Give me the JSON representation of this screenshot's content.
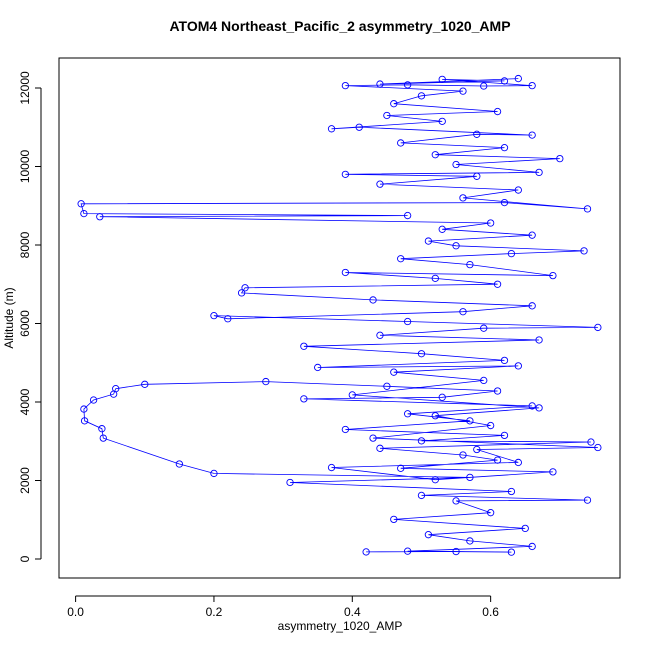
{
  "chart_data": {
    "type": "line",
    "title": "ATOM4 Northeast_Pacific_2 asymmetry_1020_AMP",
    "xlabel": "asymmetry_1020_AMP",
    "ylabel": "Altitude (m)",
    "xlim": [
      -0.024,
      0.787
    ],
    "ylim": [
      -484,
      12764
    ],
    "xticks": [
      {
        "value": 0,
        "label": "0.0"
      },
      0.2,
      0.4,
      0.6
    ],
    "yticks": [
      0,
      2000,
      4000,
      6000,
      8000,
      10000,
      12000
    ],
    "grid": false,
    "marker": "open-circle",
    "x": [
      0.42,
      0.55,
      0.63,
      0.48,
      0.66,
      0.57,
      0.51,
      0.65,
      0.46,
      0.6,
      0.55,
      0.74,
      0.5,
      0.63,
      0.31,
      0.57,
      0.2,
      0.15,
      0.04,
      0.038,
      0.013,
      0.012,
      0.026,
      0.055,
      0.058,
      0.1,
      0.275,
      0.45,
      0.61,
      0.53,
      0.33,
      0.66,
      0.48,
      0.57,
      0.39,
      0.62,
      0.5,
      0.745,
      0.44,
      0.56,
      0.61,
      0.47,
      0.69,
      0.52,
      0.37,
      0.64,
      0.58,
      0.755,
      0.43,
      0.6,
      0.52,
      0.67,
      0.4,
      0.59,
      0.46,
      0.64,
      0.35,
      0.62,
      0.5,
      0.33,
      0.67,
      0.44,
      0.59,
      0.755,
      0.48,
      0.2,
      0.22,
      0.56,
      0.66,
      0.43,
      0.24,
      0.245,
      0.61,
      0.52,
      0.39,
      0.69,
      0.57,
      0.47,
      0.63,
      0.735,
      0.55,
      0.51,
      0.66,
      0.53,
      0.6,
      0.035,
      0.48,
      0.012,
      0.008,
      0.62,
      0.74,
      0.56,
      0.64,
      0.44,
      0.58,
      0.39,
      0.67,
      0.55,
      0.7,
      0.52,
      0.62,
      0.47,
      0.58,
      0.66,
      0.41,
      0.37,
      0.53,
      0.45,
      0.61,
      0.46,
      0.5,
      0.56,
      0.39,
      0.48,
      0.59,
      0.66,
      0.53,
      0.62,
      0.44,
      0.64
    ],
    "series": [
      {
        "color": "#0000ff",
        "values": [
          180,
          190,
          175,
          200,
          320,
          460,
          620,
          780,
          1010,
          1180,
          1480,
          1500,
          1620,
          1720,
          1950,
          2080,
          2180,
          2420,
          3080,
          3320,
          3520,
          3820,
          4050,
          4200,
          4340,
          4450,
          4520,
          4400,
          4280,
          4120,
          4080,
          3900,
          3700,
          3520,
          3300,
          3150,
          3010,
          2980,
          2820,
          2650,
          2520,
          2310,
          2220,
          2020,
          2330,
          2460,
          2790,
          2840,
          3080,
          3400,
          3650,
          3850,
          4180,
          4550,
          4760,
          4920,
          4880,
          5060,
          5230,
          5420,
          5580,
          5700,
          5880,
          5900,
          6050,
          6200,
          6120,
          6300,
          6450,
          6600,
          6780,
          6910,
          7000,
          7150,
          7300,
          7220,
          7500,
          7650,
          7780,
          7850,
          7980,
          8100,
          8250,
          8400,
          8560,
          8720,
          8750,
          8800,
          9050,
          9080,
          8920,
          9200,
          9400,
          9550,
          9750,
          9800,
          9850,
          10050,
          10200,
          10300,
          10480,
          10600,
          10820,
          10800,
          11000,
          10960,
          11150,
          11300,
          11400,
          11600,
          11800,
          11920,
          12060,
          12080,
          12050,
          12060,
          12220,
          12180,
          12100,
          12240
        ]
      }
    ]
  }
}
